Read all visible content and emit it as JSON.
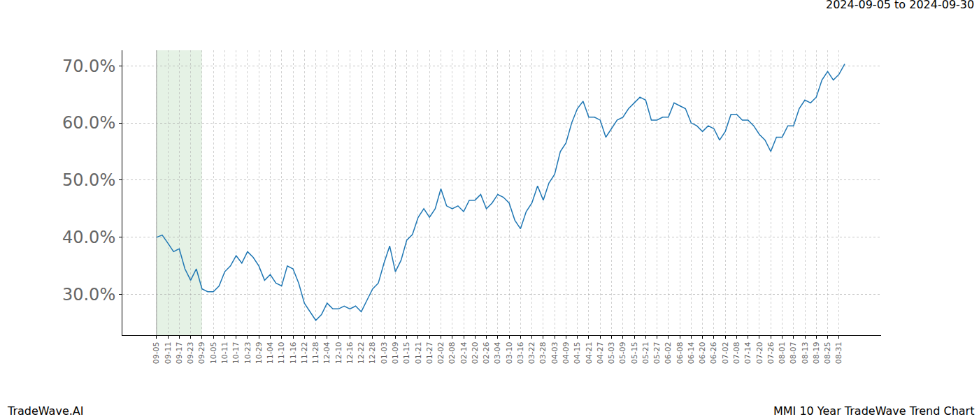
{
  "chart_data": {
    "type": "line",
    "title": "MMI 10 Year TradeWave Trend Chart",
    "subtitle": "2024-09-05 to 2024-09-30",
    "annotations": [
      {
        "text": "TradeWave.AI"
      }
    ],
    "highlight": {
      "start": "09-05",
      "end": "09-29"
    },
    "grid": true,
    "color": "#1f77b4",
    "categories": [
      "09-05",
      null,
      "09-11",
      null,
      "09-17",
      null,
      "09-23",
      null,
      "09-29",
      null,
      "10-05",
      null,
      "10-11",
      null,
      "10-17",
      null,
      "10-23",
      null,
      "10-29",
      null,
      "11-04",
      null,
      "11-10",
      null,
      "11-16",
      null,
      "11-22",
      null,
      "11-28",
      null,
      "12-04",
      null,
      "12-10",
      null,
      "12-16",
      null,
      "12-22",
      null,
      "12-28",
      null,
      "01-03",
      null,
      "01-09",
      null,
      "01-15",
      null,
      "01-21",
      null,
      "01-27",
      null,
      "02-02",
      null,
      "02-08",
      null,
      "02-14",
      null,
      "02-20",
      null,
      "02-26",
      null,
      "03-04",
      null,
      "03-10",
      null,
      "03-16",
      null,
      "03-22",
      null,
      "03-28",
      null,
      "04-03",
      null,
      "04-09",
      null,
      "04-15",
      null,
      "04-21",
      null,
      "04-27",
      null,
      "05-03",
      null,
      "05-09",
      null,
      "05-15",
      null,
      "05-21",
      null,
      "05-27",
      null,
      "06-02",
      null,
      "06-08",
      null,
      "06-14",
      null,
      "06-20",
      null,
      "06-26",
      null,
      "07-02",
      null,
      "07-08",
      null,
      "07-14",
      null,
      "07-20",
      null,
      "07-26",
      null,
      "08-01",
      null,
      "08-07",
      null,
      "08-13",
      null,
      "08-19",
      null,
      "08-25",
      null,
      "08-31",
      null
    ],
    "values": [
      40.0,
      40.4,
      39.0,
      37.5,
      38.0,
      34.5,
      32.5,
      34.5,
      31.0,
      30.5,
      30.5,
      31.5,
      34.0,
      35.0,
      36.8,
      35.5,
      37.5,
      36.5,
      35.0,
      32.5,
      33.5,
      32.0,
      31.5,
      35.0,
      34.5,
      32.0,
      28.5,
      27.0,
      25.5,
      26.5,
      28.5,
      27.5,
      27.5,
      28.0,
      27.5,
      28.0,
      27.0,
      29.0,
      31.0,
      32.0,
      35.5,
      38.5,
      34.0,
      36.0,
      39.5,
      40.5,
      43.5,
      45.0,
      43.5,
      45.0,
      48.5,
      45.5,
      45.0,
      45.5,
      44.5,
      46.5,
      46.5,
      47.5,
      45.0,
      46.0,
      47.5,
      47.0,
      46.0,
      43.0,
      41.5,
      44.5,
      46.0,
      49.0,
      46.5,
      49.5,
      51.0,
      55.0,
      56.5,
      60.0,
      62.5,
      63.8,
      61.0,
      61.0,
      60.5,
      57.5,
      59.0,
      60.5,
      61.0,
      62.5,
      63.5,
      64.5,
      64.0,
      60.5,
      60.5,
      61.0,
      61.0,
      63.5,
      63.0,
      62.5,
      60.0,
      59.5,
      58.5,
      59.5,
      59.0,
      57.0,
      58.5,
      61.5,
      61.5,
      60.5,
      60.5,
      59.5,
      58.0,
      57.0,
      55.0,
      57.5,
      57.5,
      59.5,
      59.5,
      62.5,
      64.0,
      63.5,
      64.5,
      67.5,
      69.0,
      67.5,
      68.5,
      70.3
    ],
    "ylim": [
      22.9,
      72.7
    ],
    "yticks": [
      {
        "value": 30,
        "label": "30.0%"
      },
      {
        "value": 40,
        "label": "40.0%"
      },
      {
        "value": 50,
        "label": "50.0%"
      },
      {
        "value": 60,
        "label": "60.0%"
      },
      {
        "value": 70,
        "label": "70.0%"
      }
    ]
  }
}
